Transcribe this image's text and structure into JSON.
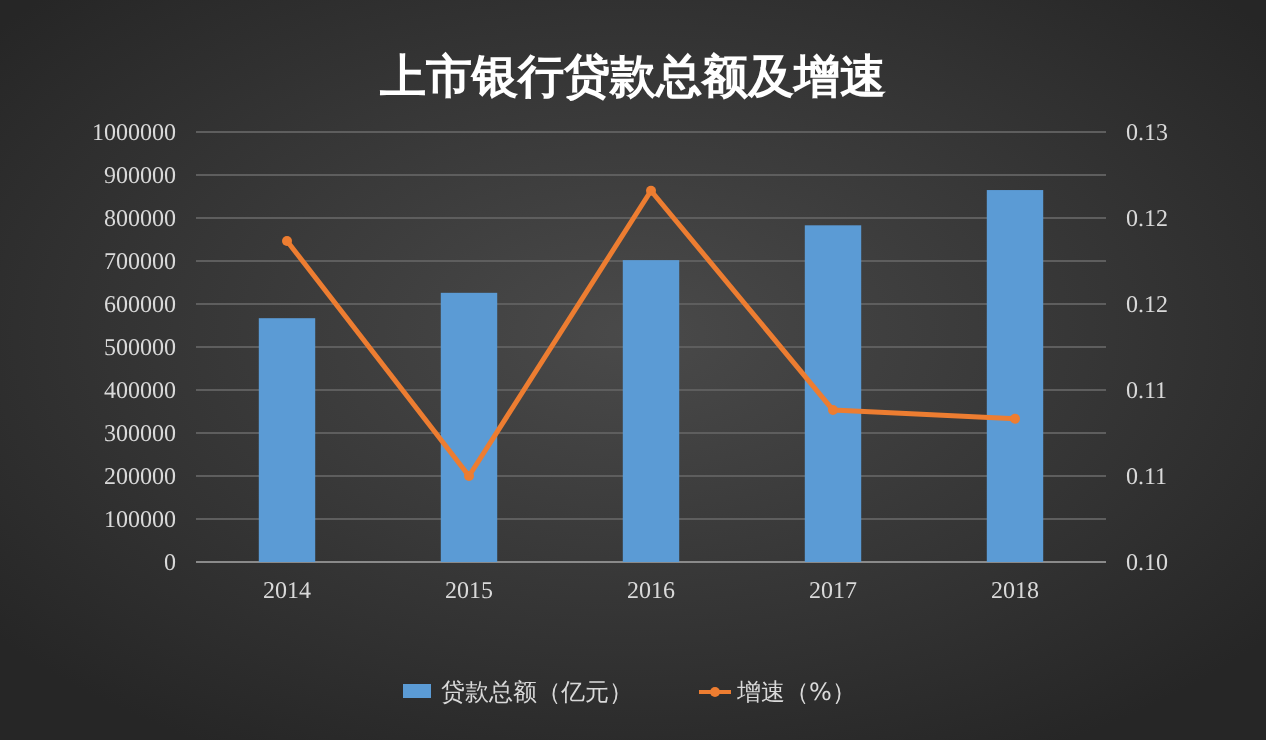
{
  "chart_data": {
    "type": "bar",
    "title": "上市银行贷款总额及增速",
    "categories": [
      "2014",
      "2015",
      "2016",
      "2017",
      "2018"
    ],
    "series": [
      {
        "name": "贷款总额（亿元）",
        "color": "#5b9bd5",
        "values": [
          567000,
          626000,
          702000,
          783000,
          865000
        ]
      },
      {
        "name": "增速（%）",
        "type": "line",
        "axis": "y2",
        "color": "#ed7d31",
        "values": [
          0.1224,
          0.106,
          0.1259,
          0.1106,
          0.11
        ]
      }
    ],
    "ylim": [
      0,
      1000000
    ],
    "yticks": [
      0,
      100000,
      200000,
      300000,
      400000,
      500000,
      600000,
      700000,
      800000,
      900000,
      1000000
    ],
    "y2lim": [
      0.1,
      0.13
    ],
    "y2ticks": [
      {
        "value": 0.1,
        "label": "0.10"
      },
      {
        "value": 0.106,
        "label": "0.11"
      },
      {
        "value": 0.112,
        "label": "0.11"
      },
      {
        "value": 0.118,
        "label": "0.12"
      },
      {
        "value": 0.124,
        "label": "0.12"
      },
      {
        "value": 0.13,
        "label": "0.13"
      }
    ],
    "grid": "y",
    "legend": "bottom",
    "marker": "circle"
  }
}
